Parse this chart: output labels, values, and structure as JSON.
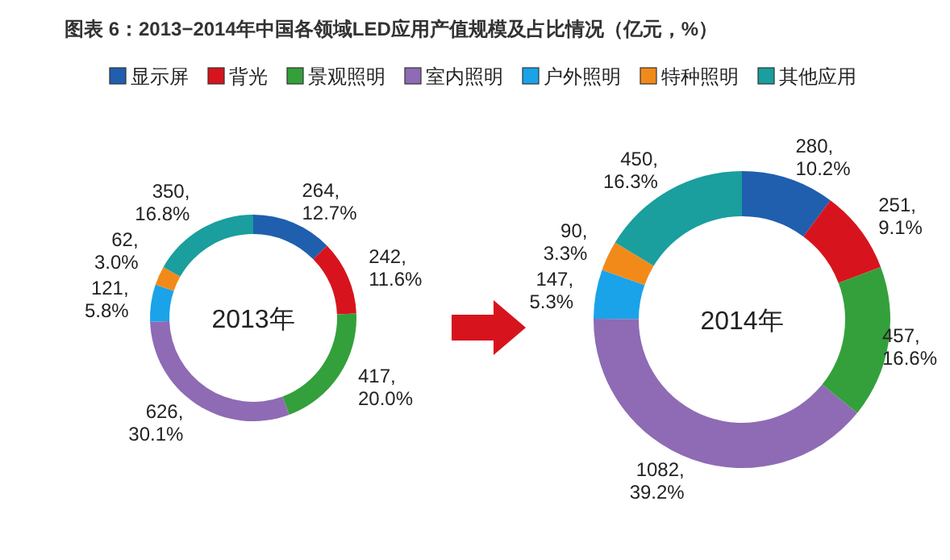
{
  "chart_data": [
    {
      "type": "donut",
      "title": "图表 6：2013−2014年中国各领域LED应用产值规模及占比情况（亿元，%）",
      "categories": [
        "显示屏",
        "背光",
        "景观照明",
        "室内照明",
        "户外照明",
        "特种照明",
        "其他应用"
      ],
      "values": [
        264,
        242,
        417,
        626,
        121,
        62,
        350
      ],
      "value_labels": [
        "264,\n12.7%",
        "242,\n11.6%",
        "417,\n20.0%",
        "626,\n30.1%",
        "121,\n5.8%",
        "62,\n3.0%",
        "350,\n16.8%"
      ],
      "colors": [
        "#1f5fae",
        "#d7141d",
        "#33a03c",
        "#8e6bb4",
        "#1aa3e8",
        "#f28a1a",
        "#1a9e9e"
      ],
      "annotations": [
        "2013年"
      ],
      "legend": "top"
    },
    {
      "type": "donut",
      "categories": [
        null,
        null,
        null,
        null,
        null,
        null,
        null
      ],
      "values": [
        280,
        251,
        457,
        1082,
        147,
        90,
        450
      ],
      "value_labels": [
        "280,\n10.2%",
        "251,\n9.1%",
        "457,\n16.6%",
        "1082,\n39.2%",
        "147,\n5.3%",
        "90,\n3.3%",
        "450,\n16.3%"
      ],
      "colors": [
        "#1f5fae",
        "#d7141d",
        "#33a03c",
        "#8e6bb4",
        "#1aa3e8",
        "#f28a1a",
        "#1a9e9e"
      ],
      "annotations": [
        "2014年"
      ]
    }
  ]
}
